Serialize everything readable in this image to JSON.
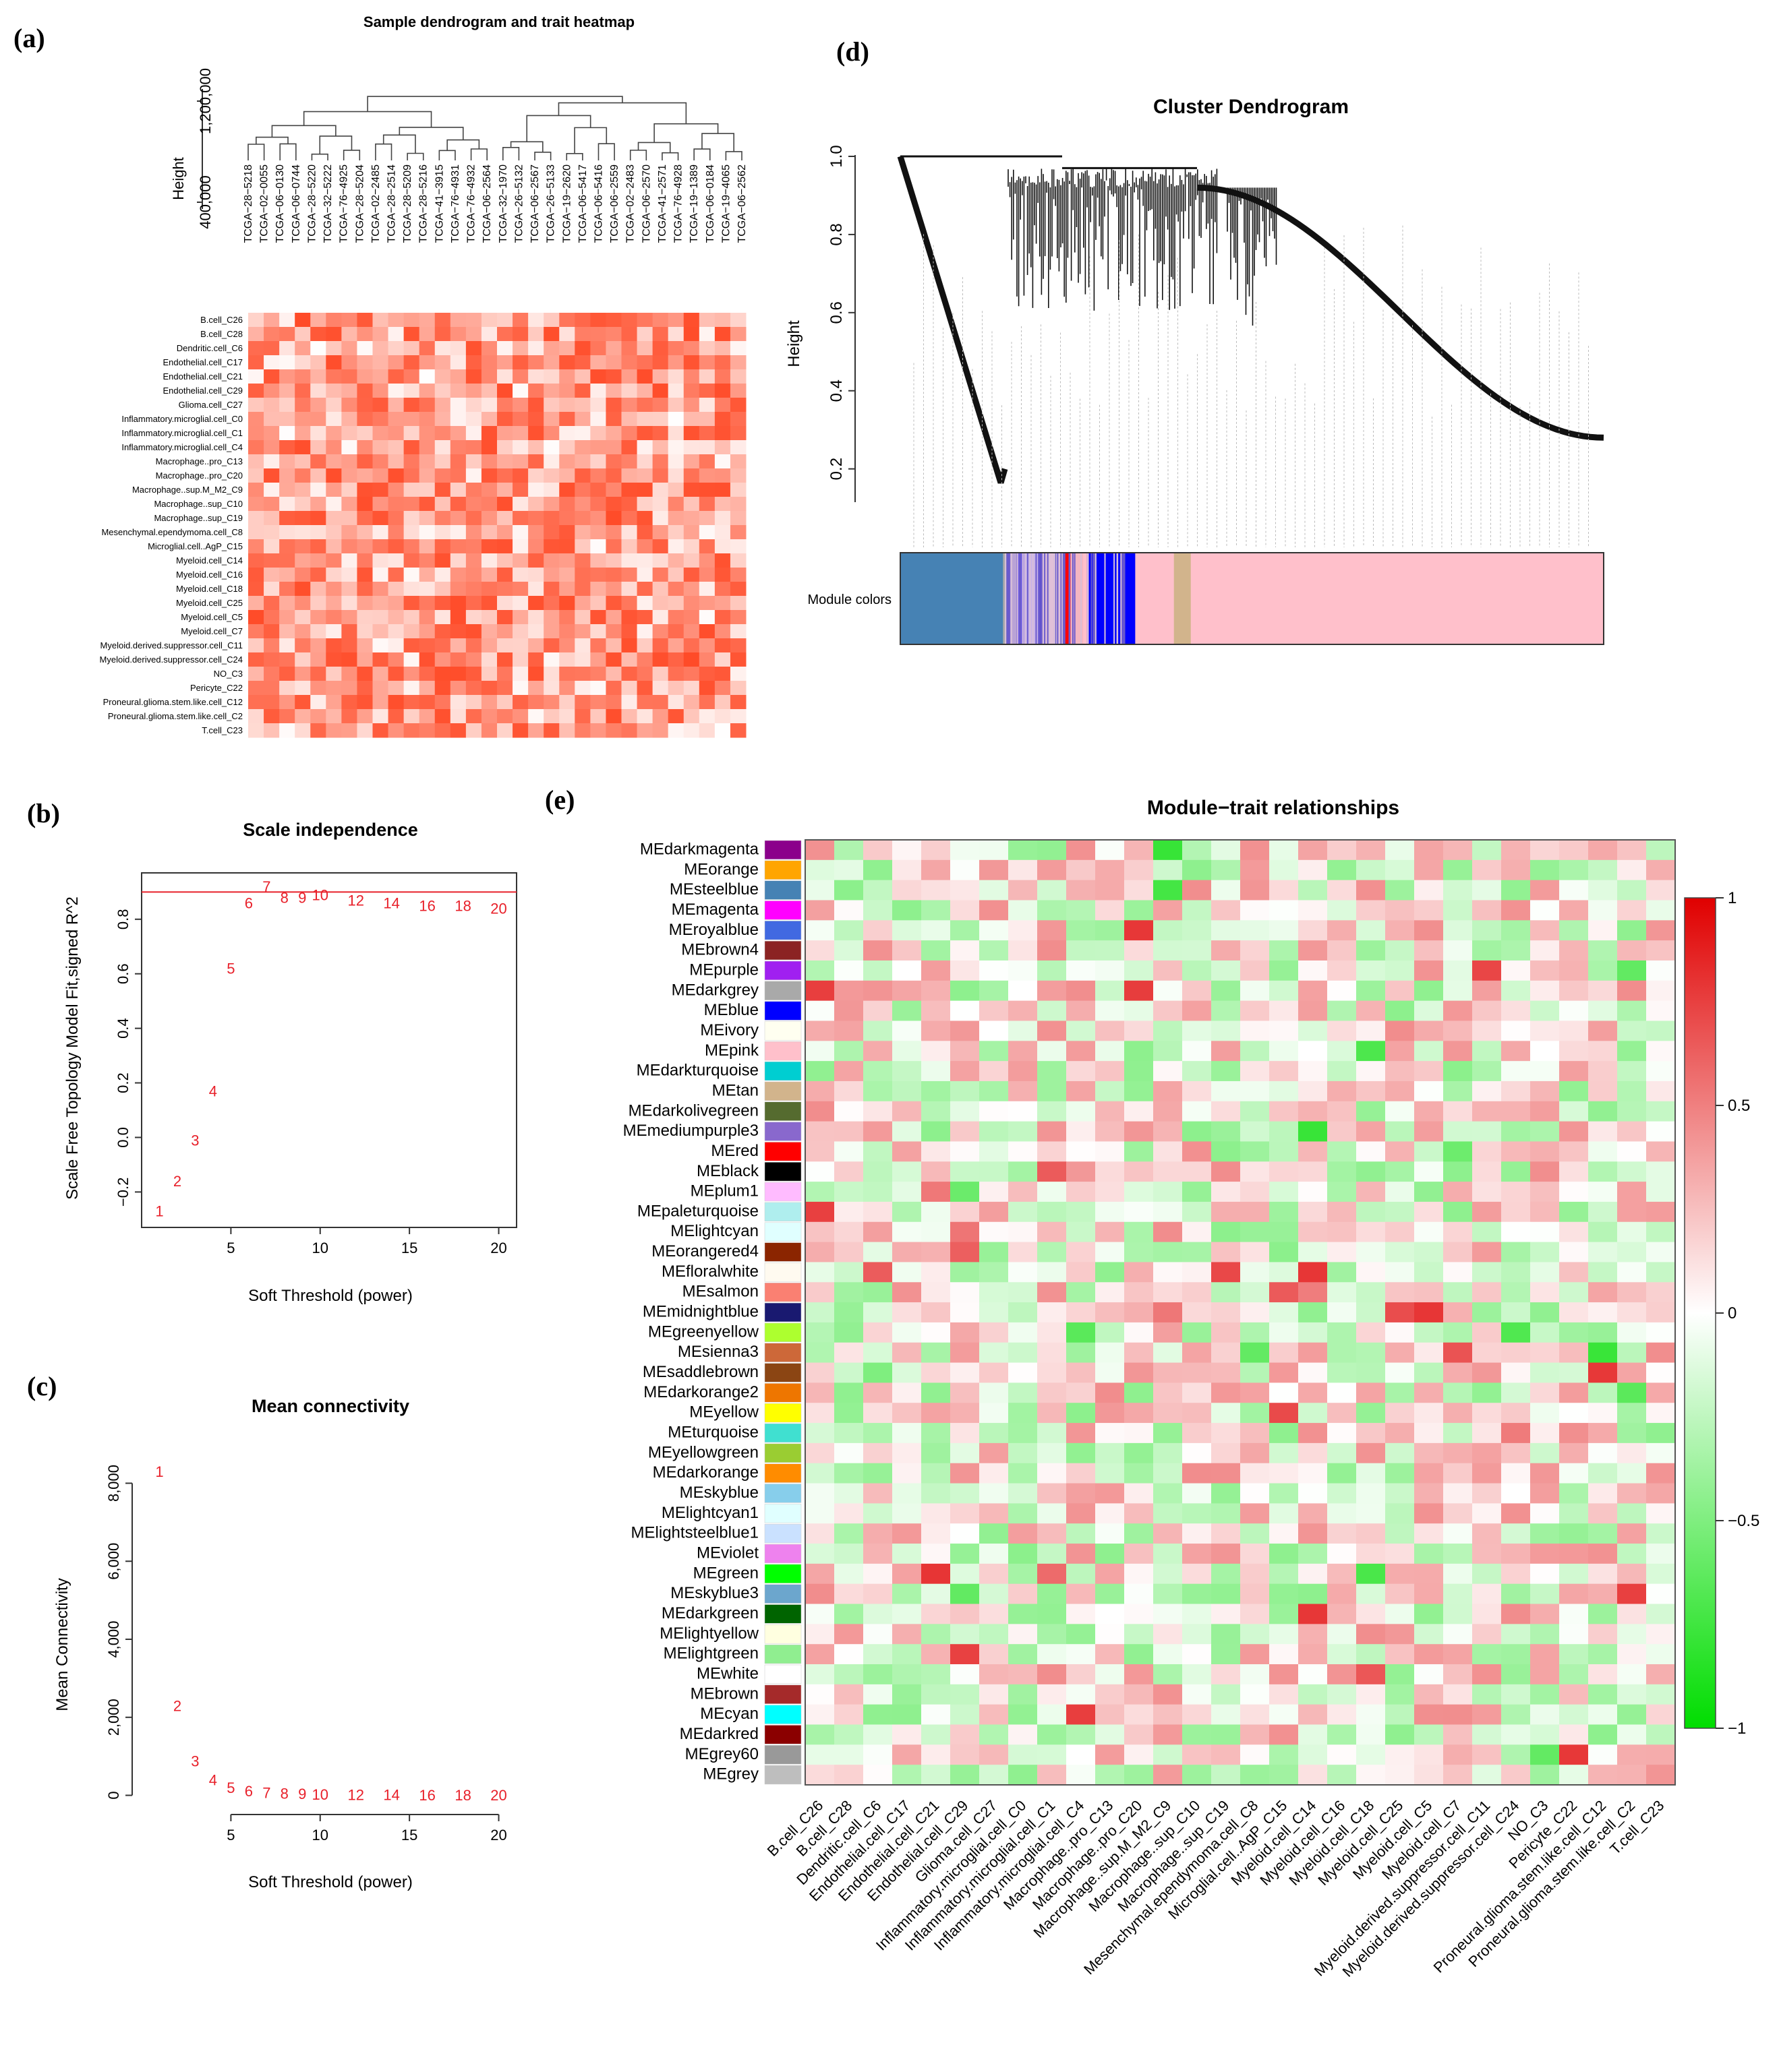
{
  "panels": {
    "a": {
      "letter": "(a)",
      "title": "Sample dendrogram and trait heatmap",
      "ylabel": "Height",
      "yticks": [
        "400,000",
        "1,200,000"
      ],
      "samples": [
        "TCGA−28−5218",
        "TCGA−02−0055",
        "TCGA−06−0130",
        "TCGA−06−0744",
        "TCGA−28−5220",
        "TCGA−32−5222",
        "TCGA−76−4925",
        "TCGA−28−5204",
        "TCGA−02−2485",
        "TCGA−28−2514",
        "TCGA−28−5209",
        "TCGA−28−5216",
        "TCGA−41−3915",
        "TCGA−76−4931",
        "TCGA−76−4932",
        "TCGA−06−2564",
        "TCGA−32−1970",
        "TCGA−26−5132",
        "TCGA−06−2567",
        "TCGA−26−5133",
        "TCGA−19−2620",
        "TCGA−06−5417",
        "TCGA−06−5416",
        "TCGA−06−2559",
        "TCGA−02−2483",
        "TCGA−06−2570",
        "TCGA−41−2571",
        "TCGA−76−4928",
        "TCGA−19−1389",
        "TCGA−06−0184",
        "TCGA−19−4065",
        "TCGA−06−2562"
      ],
      "traits": [
        "B.cell_C26",
        "B.cell_C28",
        "Dendritic.cell_C6",
        "Endothelial.cell_C17",
        "Endothelial.cell_C21",
        "Endothelial.cell_C29",
        "Glioma.cell_C27",
        "Inflammatory.microglial.cell_C0",
        "Inflammatory.microglial.cell_C1",
        "Inflammatory.microglial.cell_C4",
        "Macrophage..pro_C13",
        "Macrophage..pro_C20",
        "Macrophage..sup.M_M2_C9",
        "Macrophage..sup_C10",
        "Macrophage..sup_C19",
        "Mesenchymal.ependymoma.cell_C8",
        "Microglial.cell..AgP_C15",
        "Myeloid.cell_C14",
        "Myeloid.cell_C16",
        "Myeloid.cell_C18",
        "Myeloid.cell_C25",
        "Myeloid.cell_C5",
        "Myeloid.cell_C7",
        "Myeloid.derived.suppressor.cell_C11",
        "Myeloid.derived.suppressor.cell_C24",
        "NO_C3",
        "Pericyte_C22",
        "Proneural.glioma.stem.like.cell_C12",
        "Proneural.glioma.stem.like.cell_C2",
        "T.cell_C23"
      ]
    },
    "b": {
      "letter": "(b)",
      "title": "Scale independence",
      "xlabel": "Soft Threshold (power)",
      "ylabel": "Scale Free Topology Model Fit,signed R^2",
      "chart_type": "scatter",
      "powers": [
        1,
        2,
        3,
        4,
        5,
        6,
        7,
        8,
        9,
        10,
        12,
        14,
        16,
        18,
        20
      ],
      "values": [
        -0.27,
        -0.16,
        -0.01,
        0.17,
        0.62,
        0.86,
        0.92,
        0.88,
        0.88,
        0.89,
        0.87,
        0.86,
        0.85,
        0.85,
        0.84
      ],
      "hline": 0.9,
      "xticks": [
        5,
        10,
        15,
        20
      ],
      "yticks": [
        -0.2,
        0.0,
        0.2,
        0.4,
        0.6,
        0.8
      ],
      "ytick_labels": [
        "−0.2",
        "0.0",
        "0.2",
        "0.4",
        "0.6",
        "0.8"
      ],
      "xlim": [
        0,
        21
      ],
      "ylim": [
        -0.33,
        0.97
      ]
    },
    "c": {
      "letter": "(c)",
      "title": "Mean connectivity",
      "xlabel": "Soft Threshold (power)",
      "ylabel": "Mean Connectivity",
      "chart_type": "scatter",
      "powers": [
        1,
        2,
        3,
        4,
        5,
        6,
        7,
        8,
        9,
        10,
        12,
        14,
        16,
        18,
        20
      ],
      "values": [
        8300,
        2300,
        880,
        400,
        200,
        110,
        70,
        50,
        40,
        30,
        20,
        15,
        12,
        10,
        8
      ],
      "xticks": [
        5,
        10,
        15,
        20
      ],
      "yticks": [
        0,
        2000,
        4000,
        6000,
        8000
      ],
      "ytick_labels": [
        "0",
        "2,000",
        "4,000",
        "6,000",
        "8,000"
      ],
      "xlim": [
        0,
        21
      ],
      "ylim": [
        -250,
        8700
      ]
    },
    "d": {
      "letter": "(d)",
      "title": "Cluster Dendrogram",
      "ylabel": "Height",
      "yticks": [
        0.2,
        0.4,
        0.6,
        0.8,
        1.0
      ],
      "ytick_labels": [
        "0.2",
        "0.4",
        "0.6",
        "0.8",
        "1.0"
      ],
      "ylim": [
        0.12,
        1.0
      ],
      "module_label": "Module colors",
      "module_bar": [
        {
          "color": "#4682b4",
          "share": 0.146
        },
        {
          "color": "#a9a9a9",
          "share": 0.008
        },
        {
          "color": "#b9a3d6",
          "share": 0.012
        },
        {
          "color": "#7b68ee",
          "share": 0.01
        },
        {
          "color": "#c8b4e8",
          "share": 0.02
        },
        {
          "color": "#4b3fcf",
          "share": 0.006
        },
        {
          "color": "#e0c0d8",
          "share": 0.03
        },
        {
          "color": "#ff0000",
          "share": 0.01
        },
        {
          "color": "#f4b6c2",
          "share": 0.018
        },
        {
          "color": "#ffc0cb",
          "share": 0.008
        },
        {
          "color": "#0000ff",
          "share": 0.066
        },
        {
          "color": "#ffc0cb",
          "share": 0.055
        },
        {
          "color": "#d2b48c",
          "share": 0.024
        },
        {
          "color": "#ffc0cb",
          "share": 0.587
        }
      ]
    },
    "e": {
      "letter": "(e)",
      "title": "Module−trait relationships",
      "chart_type": "heatmap",
      "modules": [
        {
          "name": "MEdarkmagenta",
          "color": "#8b008b"
        },
        {
          "name": "MEorange",
          "color": "#ffa500"
        },
        {
          "name": "MEsteelblue",
          "color": "#4682b4"
        },
        {
          "name": "MEmagenta",
          "color": "#ff00ff"
        },
        {
          "name": "MEroyalblue",
          "color": "#4169e1"
        },
        {
          "name": "MEbrown4",
          "color": "#8b2323"
        },
        {
          "name": "MEpurple",
          "color": "#a020f0"
        },
        {
          "name": "MEdarkgrey",
          "color": "#a9a9a9"
        },
        {
          "name": "MEblue",
          "color": "#0000ff"
        },
        {
          "name": "MEivory",
          "color": "#fffff0"
        },
        {
          "name": "MEpink",
          "color": "#ffc0cb"
        },
        {
          "name": "MEdarkturquoise",
          "color": "#00ced1"
        },
        {
          "name": "MEtan",
          "color": "#d2b48c"
        },
        {
          "name": "MEdarkolivegreen",
          "color": "#556b2f"
        },
        {
          "name": "MEmediumpurple3",
          "color": "#8968cd"
        },
        {
          "name": "MEred",
          "color": "#ff0000"
        },
        {
          "name": "MEblack",
          "color": "#000000"
        },
        {
          "name": "MEplum1",
          "color": "#ffbbff"
        },
        {
          "name": "MEpaleturquoise",
          "color": "#afeeee"
        },
        {
          "name": "MElightcyan",
          "color": "#e0ffff"
        },
        {
          "name": "MEorangered4",
          "color": "#8b2500"
        },
        {
          "name": "MEfloralwhite",
          "color": "#fffaf0"
        },
        {
          "name": "MEsalmon",
          "color": "#fa8072"
        },
        {
          "name": "MEmidnightblue",
          "color": "#191970"
        },
        {
          "name": "MEgreenyellow",
          "color": "#adff2f"
        },
        {
          "name": "MEsienna3",
          "color": "#cd6839"
        },
        {
          "name": "MEsaddlebrown",
          "color": "#8b4513"
        },
        {
          "name": "MEdarkorange2",
          "color": "#ee7600"
        },
        {
          "name": "MEyellow",
          "color": "#ffff00"
        },
        {
          "name": "MEturquoise",
          "color": "#40e0d0"
        },
        {
          "name": "MEyellowgreen",
          "color": "#9acd32"
        },
        {
          "name": "MEdarkorange",
          "color": "#ff8c00"
        },
        {
          "name": "MEskyblue",
          "color": "#87ceeb"
        },
        {
          "name": "MElightcyan1",
          "color": "#e0ffff"
        },
        {
          "name": "MElightsteelblue1",
          "color": "#cae1ff"
        },
        {
          "name": "MEviolet",
          "color": "#ee82ee"
        },
        {
          "name": "MEgreen",
          "color": "#00ff00"
        },
        {
          "name": "MEskyblue3",
          "color": "#6ca6cd"
        },
        {
          "name": "MEdarkgreen",
          "color": "#006400"
        },
        {
          "name": "MElightyellow",
          "color": "#ffffe0"
        },
        {
          "name": "MElightgreen",
          "color": "#90ee90"
        },
        {
          "name": "MEwhite",
          "color": "#ffffff"
        },
        {
          "name": "MEbrown",
          "color": "#a52a2a"
        },
        {
          "name": "MEcyan",
          "color": "#00ffff"
        },
        {
          "name": "MEdarkred",
          "color": "#8b0000"
        },
        {
          "name": "MEgrey60",
          "color": "#999999"
        },
        {
          "name": "MEgrey",
          "color": "#bebebe"
        }
      ],
      "traits": [
        "B.cell_C26",
        "B.cell_C28",
        "Dendritic.cell_C6",
        "Endothelial.cell_C17",
        "Endothelial.cell_C21",
        "Endothelial.cell_C29",
        "Glioma.cell_C27",
        "Inflammatory.microglial.cell_C0",
        "Inflammatory.microglial.cell_C1",
        "Inflammatory.microglial.cell_C4",
        "Macrophage..pro_C13",
        "Macrophage..pro_C20",
        "Macrophage..sup.M_M2_C9",
        "Macrophage..sup_C10",
        "Macrophage..sup_C19",
        "Mesenchymal.ependymoma.cell_C8",
        "Microglial.cell..AgP_C15",
        "Myeloid.cell_C14",
        "Myeloid.cell_C16",
        "Myeloid.cell_C18",
        "Myeloid.cell_C25",
        "Myeloid.cell_C5",
        "Myeloid.cell_C7",
        "Myeloid.derived.suppressor.cell_C11",
        "Myeloid.derived.suppressor.cell_C24",
        "NO_C3",
        "Pericyte_C22",
        "Proneural.glioma.stem.like.cell_C12",
        "Proneural.glioma.stem.like.cell_C2",
        "T.cell_C23"
      ],
      "colorbar": {
        "min": -1,
        "max": 1,
        "ticks": [
          1,
          0.5,
          0,
          -0.5,
          -1
        ],
        "tick_labels": [
          "1",
          "0.5",
          "0",
          "−0.5",
          "−1"
        ],
        "low": "#00dd00",
        "mid": "#ffffff",
        "high": "#e00000"
      }
    }
  }
}
